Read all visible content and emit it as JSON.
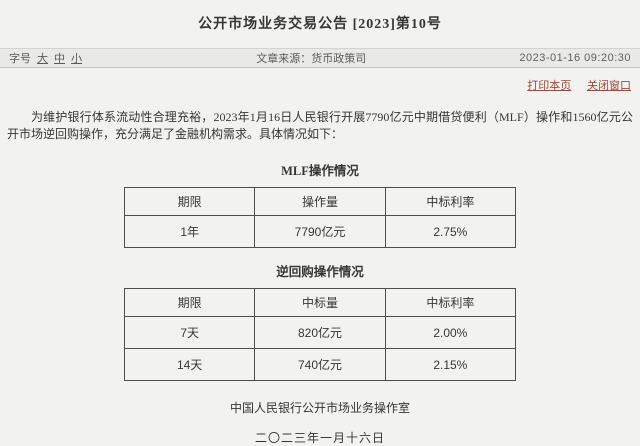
{
  "page": {
    "title": "公开市场业务交易公告 [2023]第10号"
  },
  "toolbar": {
    "font_size_label": "字号",
    "font_size_options": [
      {
        "label": "大"
      },
      {
        "label": "中"
      },
      {
        "label": "小"
      }
    ],
    "source_label": "文章来源：货币政策司",
    "timestamp": "2023-01-16 09:20:30"
  },
  "actions": {
    "print_label": "打印本页",
    "close_label": "关闭窗口"
  },
  "body": {
    "paragraph": "为维护银行体系流动性合理充裕，2023年1月16日人民银行开展7790亿元中期借贷便利（MLF）操作和1560亿元公开市场逆回购操作，充分满足了金融机构需求。具体情况如下："
  },
  "mlf_table": {
    "title": "MLF操作情况",
    "headers": [
      "期限",
      "操作量",
      "中标利率"
    ],
    "rows": [
      [
        "1年",
        "7790亿元",
        "2.75%"
      ]
    ]
  },
  "repo_table": {
    "title": "逆回购操作情况",
    "headers": [
      "期限",
      "中标量",
      "中标利率"
    ],
    "rows": [
      [
        "7天",
        "820亿元",
        "2.00%"
      ],
      [
        "14天",
        "740亿元",
        "2.15%"
      ]
    ]
  },
  "footer": {
    "signature": "中国人民银行公开市场业务操作室",
    "date": "二〇二三年一月十六日"
  },
  "colors": {
    "page_background": "#f2f2f1",
    "toolbar_background": "#e9e9e8",
    "link_red": "#9c4a3e",
    "table_border": "#4e4e4e",
    "text": "#363636"
  }
}
